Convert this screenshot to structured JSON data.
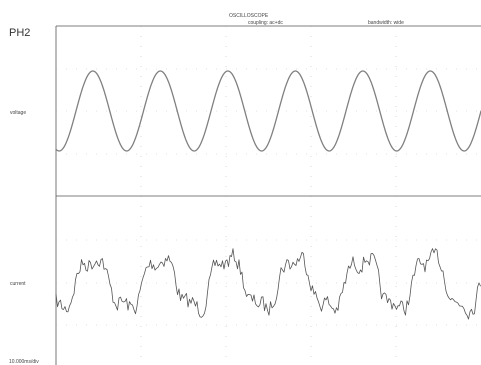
{
  "header": {
    "title": "OSCILLOSCOPE",
    "coupling": "coupling: ac+dc",
    "bandwidth": "bandwidth: wide"
  },
  "phase_label": "PH2",
  "channels": {
    "voltage": {
      "label": "voltage",
      "color": "#808080"
    },
    "current": {
      "label": "current",
      "color": "#555555"
    }
  },
  "timebase": "10.000ms/div"
}
